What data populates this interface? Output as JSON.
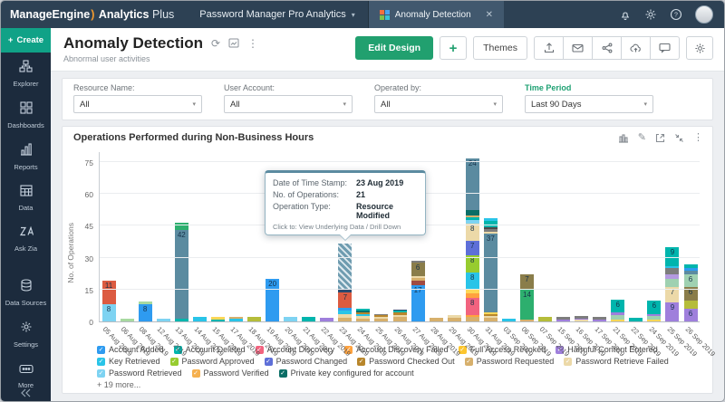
{
  "icons": {
    "caret_down": "▾",
    "close": "✕",
    "kebab": "⋮",
    "refresh": "⟳",
    "pencil": "✎",
    "plus": "+",
    "check": "✓",
    "question": "?"
  },
  "app": {
    "brand_name": "ManageEngine",
    "brand_paren": ")",
    "product_name": "Analytics",
    "product_suffix": "Plus",
    "workspace_selector": "Password Manager Pro Analytics",
    "tab_label": "Anomaly Detection"
  },
  "sidebar": {
    "create_label": "Create",
    "items": [
      {
        "label": "Explorer",
        "icon": "explorer"
      },
      {
        "label": "Dashboards",
        "icon": "dashboards"
      },
      {
        "label": "Reports",
        "icon": "reports"
      },
      {
        "label": "Data",
        "icon": "data"
      },
      {
        "label": "Ask Zia",
        "icon": "ask-zia"
      },
      {
        "label": "Data Sources",
        "icon": "data-sources",
        "gap": true
      },
      {
        "label": "Settings",
        "icon": "settings"
      },
      {
        "label": "More",
        "icon": "more"
      }
    ]
  },
  "page": {
    "title": "Anomaly Detection",
    "subtitle": "Abnormal user activities",
    "edit_design_label": "Edit Design",
    "themes_label": "Themes"
  },
  "filters": [
    {
      "label": "Resource Name:",
      "value": "All",
      "highlight": false
    },
    {
      "label": "User Account:",
      "value": "All",
      "highlight": false
    },
    {
      "label": "Operated by:",
      "value": "All",
      "highlight": false
    },
    {
      "label": "Time Period",
      "value": "Last 90 Days",
      "highlight": true
    }
  ],
  "tooltip": {
    "date_label": "Date of Time Stamp:",
    "date_value": "23 Aug 2019",
    "ops_label": "No. of Operations:",
    "ops_value": "21",
    "type_label": "Operation Type:",
    "type_value": "Resource Modified",
    "footer": "Click to: View Underlying Data / Drill Down"
  },
  "chart_data": {
    "type": "bar",
    "stacked": true,
    "title": "Operations Performed during Non-Business Hours",
    "xlabel": "",
    "ylabel": "No. of Operations",
    "yticks": [
      0,
      15,
      30,
      45,
      60,
      75
    ],
    "ylim": [
      0,
      80
    ],
    "grid": true,
    "legend_position": "bottom",
    "hover_index": 13,
    "hover": {
      "category": "23 Aug 2019",
      "series": "Resource Modified",
      "value": 21
    },
    "bars": [
      {
        "d": "05 Aug 2019",
        "s": [
          [
            "#7ed3f2",
            8,
            "8"
          ],
          [
            "#dc5b41",
            11,
            "11"
          ]
        ]
      },
      {
        "d": "06 Aug 2019",
        "s": [
          [
            "#a8d9a0",
            1.2
          ]
        ]
      },
      {
        "d": "08 Aug 2019",
        "s": [
          [
            "#2e9bf0",
            8,
            "8"
          ],
          [
            "#a8d9a0",
            1.2
          ]
        ]
      },
      {
        "d": "12 Aug 2019",
        "s": [
          [
            "#7ed3f2",
            1.2
          ]
        ]
      },
      {
        "d": "13 Aug 2019",
        "s": [
          [
            "#00b5ad",
            1.2
          ],
          [
            "#5b8ba0",
            42,
            "42"
          ],
          [
            "#2daf6e",
            3
          ]
        ]
      },
      {
        "d": "14 Aug 2019",
        "s": [
          [
            "#29c4e8",
            2
          ]
        ]
      },
      {
        "d": "15 Aug 2019",
        "s": [
          [
            "#00b5ad",
            1
          ],
          [
            "#fdd757",
            1.2
          ]
        ]
      },
      {
        "d": "17 Aug 2019",
        "s": [
          [
            "#29c4e8",
            1.2
          ],
          [
            "#d7b06c",
            0.8
          ]
        ]
      },
      {
        "d": "18 Aug 2019",
        "s": [
          [
            "#b5bd3a",
            2
          ]
        ]
      },
      {
        "d": "19 Aug 2019",
        "s": [
          [
            "#2e9bf0",
            20,
            "20"
          ]
        ]
      },
      {
        "d": "20 Aug 2019",
        "s": [
          [
            "#7ed3f2",
            2.2
          ]
        ]
      },
      {
        "d": "21 Aug 2019",
        "s": [
          [
            "#00b5ad",
            2
          ]
        ]
      },
      {
        "d": "22 Aug 2019",
        "s": [
          [
            "#9f7fdc",
            1.6
          ]
        ]
      },
      {
        "d": "23 Aug 2019",
        "s": [
          [
            "#d7b06c",
            1.5
          ],
          [
            "#ecd9a8",
            2
          ],
          [
            "#29c4e8",
            1.5
          ],
          [
            "#2e9bf0",
            1.5
          ],
          [
            "#dc5b41",
            7,
            "7"
          ],
          [
            "#2b4a6f",
            2
          ],
          [
            "hatch",
            21
          ]
        ]
      },
      {
        "d": "24 Aug 2019",
        "s": [
          [
            "#d7b06c",
            1.2
          ],
          [
            "#ecd9a8",
            1.2
          ],
          [
            "#29c4e8",
            1
          ],
          [
            "#b8862b",
            1
          ],
          [
            "#0a6e66",
            0.8
          ],
          [
            "#00b5ad",
            0.8
          ]
        ]
      },
      {
        "d": "25 Aug 2019",
        "s": [
          [
            "#d7b06c",
            1.2
          ],
          [
            "#ecd9a8",
            1
          ],
          [
            "#b8862b",
            0.8
          ],
          [
            "#7d7d7d",
            0.6
          ]
        ]
      },
      {
        "d": "26 Aug 2019",
        "s": [
          [
            "#d7b06c",
            2
          ],
          [
            "#ecd9a8",
            1.2
          ],
          [
            "#b8862b",
            1
          ],
          [
            "#00b5ad",
            0.8
          ],
          [
            "#2b4a6f",
            0.6
          ]
        ]
      },
      {
        "d": "27 Aug 2019",
        "s": [
          [
            "#2e9bf0",
            17,
            "17"
          ],
          [
            "#a04a42",
            2
          ],
          [
            "#d7b06c",
            1.5
          ],
          [
            "#ecd9a8",
            1
          ],
          [
            "#8a7d4a",
            6,
            "6"
          ],
          [
            "#7d7d7d",
            1
          ]
        ]
      },
      {
        "d": "28 Aug 2019",
        "s": [
          [
            "#d7b06c",
            1.8
          ]
        ]
      },
      {
        "d": "29 Aug 2019",
        "s": [
          [
            "#d7b06c",
            1.5
          ],
          [
            "#ecd9a8",
            1.5
          ]
        ]
      },
      {
        "d": "30 Aug 2019",
        "s": [
          [
            "#d7b06c",
            2
          ],
          [
            "#ffa23e",
            1
          ],
          [
            "#f2637f",
            8,
            "8"
          ],
          [
            "#ffa23e",
            2
          ],
          [
            "#fdd757",
            2
          ],
          [
            "#29c4e8",
            8,
            "8"
          ],
          [
            "#97cc2f",
            8,
            "8"
          ],
          [
            "#5e6fd8",
            7,
            "7"
          ],
          [
            "#ecd9a8",
            8,
            "8"
          ],
          [
            "#7ed3f2",
            1.5
          ],
          [
            "#00b5ad",
            1.5
          ],
          [
            "#d7b06c",
            1
          ],
          [
            "#0a6e66",
            2.5
          ],
          [
            "#5b8ba0",
            24,
            "24"
          ]
        ]
      },
      {
        "d": "31 Aug 2019",
        "s": [
          [
            "#d7b06c",
            1.5
          ],
          [
            "#ecd9a8",
            1.2
          ],
          [
            "#b8862b",
            0.8
          ],
          [
            "#fdd757",
            0.6
          ],
          [
            "#5b8ba0",
            37,
            "37"
          ],
          [
            "#ecd9a8",
            1
          ],
          [
            "#7d7d7d",
            1.5
          ],
          [
            "#4a4a4a",
            0.8
          ],
          [
            "#00b5ad",
            3
          ],
          [
            "#29c4e8",
            1
          ]
        ]
      },
      {
        "d": "03 Sep 2019",
        "s": [
          [
            "#29c4e8",
            1.2
          ]
        ]
      },
      {
        "d": "06 Sep 2019",
        "s": [
          [
            "#d7b06c",
            1
          ],
          [
            "#2daf6e",
            14,
            "14"
          ],
          [
            "#8a7d4a",
            7,
            "7"
          ]
        ]
      },
      {
        "d": "07 Sep 2019",
        "s": [
          [
            "#b5bd3a",
            2.2
          ]
        ]
      },
      {
        "d": "15 Sep 2019",
        "s": [
          [
            "#9f7fdc",
            1
          ],
          [
            "#7d7d7d",
            1
          ]
        ]
      },
      {
        "d": "16 Sep 2019",
        "s": [
          [
            "#ecd9a8",
            0.8
          ],
          [
            "#9f7fdc",
            0.6
          ],
          [
            "#7d7d7d",
            1
          ]
        ]
      },
      {
        "d": "17 Sep 2019",
        "s": [
          [
            "#9f7fdc",
            1
          ],
          [
            "#7d7d7d",
            1
          ]
        ]
      },
      {
        "d": "21 Sep 2019",
        "s": [
          [
            "#fdd757",
            1
          ],
          [
            "#9fd1b1",
            2
          ],
          [
            "#9f7fdc",
            1.2
          ],
          [
            "#00b5ad",
            6,
            "6"
          ]
        ]
      },
      {
        "d": "22 Sep 2019",
        "s": [
          [
            "#00b5ad",
            1.8
          ]
        ]
      },
      {
        "d": "24 Sep 2019",
        "s": [
          [
            "#fdd757",
            0.8
          ],
          [
            "#9fd1b1",
            1.6
          ],
          [
            "#9f7fdc",
            1.2
          ],
          [
            "#00b5ad",
            6,
            "6"
          ]
        ]
      },
      {
        "d": "25 Sep 2019",
        "s": [
          [
            "#9f7fdc",
            9,
            "9"
          ],
          [
            "#ecd9a8",
            7,
            "7"
          ],
          [
            "#9fd1b1",
            4
          ],
          [
            "#b49ae0",
            2
          ],
          [
            "#7d7d7d",
            3
          ],
          [
            "#29c4e8",
            1
          ],
          [
            "#00b5ad",
            9,
            "9"
          ]
        ]
      },
      {
        "d": "26 Sep 2019",
        "s": [
          [
            "#9f7fdc",
            6,
            "6"
          ],
          [
            "#b5bd3a",
            4
          ],
          [
            "#8a7d4a",
            6,
            "6"
          ],
          [
            "#9fd1b1",
            6,
            "6"
          ],
          [
            "#5b8ba0",
            2
          ],
          [
            "#2e9bf0",
            1
          ],
          [
            "#00b5ad",
            2
          ]
        ]
      }
    ]
  },
  "legend": {
    "items": [
      {
        "name": "Account Added",
        "color": "#2e9bf0"
      },
      {
        "name": "Account Deleted",
        "color": "#00b5ad"
      },
      {
        "name": "Account Discovery",
        "color": "#f2637f"
      },
      {
        "name": "Account Discovery Failed",
        "color": "#ffa23e"
      },
      {
        "name": "Full Access Revoked",
        "color": "#fdc62e"
      },
      {
        "name": "Harmful Content Entered",
        "color": "#9f7fdc"
      },
      {
        "name": "Key Retrieved",
        "color": "#29c4e8"
      },
      {
        "name": "Password Approved",
        "color": "#97cc2f"
      },
      {
        "name": "Password Changed",
        "color": "#5e6fd8"
      },
      {
        "name": "Password Checked Out",
        "color": "#b8862b"
      },
      {
        "name": "Password Requested",
        "color": "#d7b06c"
      },
      {
        "name": "Password Retrieve Failed",
        "color": "#ecd9a8"
      },
      {
        "name": "Password Retrieved",
        "color": "#7ed3f2"
      },
      {
        "name": "Password Verified",
        "color": "#f5b04e"
      },
      {
        "name": "Private key configured for account",
        "color": "#0a6e66"
      }
    ],
    "more": "+ 19 more..."
  },
  "colors": {
    "accent_green": "#21a06f",
    "topbar": "#2d4154",
    "sidebar": "#1c2b3d",
    "hover_slate": "#5b8ba0"
  }
}
